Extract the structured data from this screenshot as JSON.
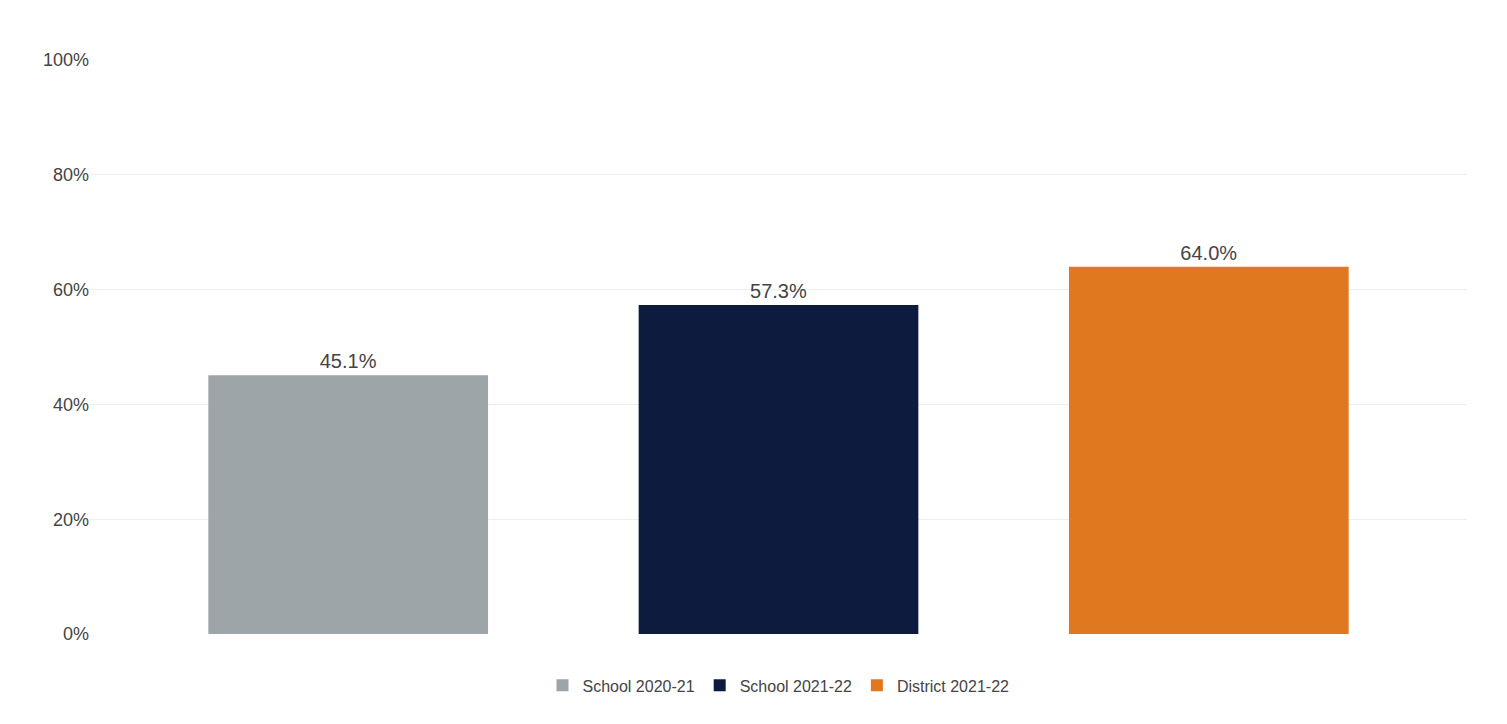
{
  "chart_data": {
    "type": "bar",
    "categories": [
      "School 2020-21",
      "School 2021-22",
      "District 2021-22"
    ],
    "values": [
      45.1,
      57.3,
      64.0
    ],
    "value_labels": [
      "45.1%",
      "57.3%",
      "64.0%"
    ],
    "colors": [
      "#9EA5A8",
      "#0D1B3E",
      "#E07820"
    ],
    "ylim": [
      0,
      100
    ],
    "yticks": [
      {
        "value": 0,
        "label": "0%"
      },
      {
        "value": 20,
        "label": "20%"
      },
      {
        "value": 40,
        "label": "40%"
      },
      {
        "value": 60,
        "label": "60%"
      },
      {
        "value": 80,
        "label": "80%"
      },
      {
        "value": 100,
        "label": "100%"
      }
    ],
    "grid": true,
    "legend": "bottom",
    "data_labels": true,
    "tick_labels": "y"
  }
}
